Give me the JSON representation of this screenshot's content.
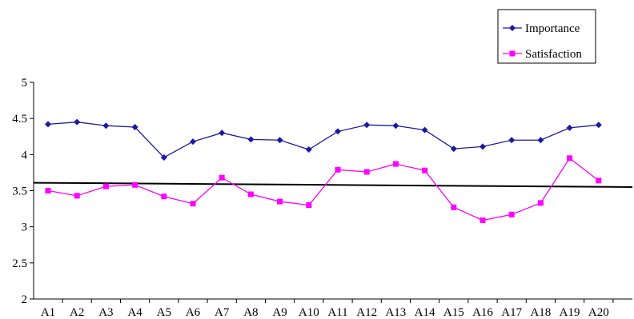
{
  "chart_data": {
    "type": "line",
    "title": "",
    "xlabel": "",
    "ylabel": "",
    "categories": [
      "A1",
      "A2",
      "A3",
      "A4",
      "A5",
      "A6",
      "A7",
      "A8",
      "A9",
      "A10",
      "A11",
      "A12",
      "A13",
      "A14",
      "A15",
      "A16",
      "A17",
      "A18",
      "A19",
      "A20"
    ],
    "ylim": [
      2,
      5
    ],
    "yticks": [
      "2",
      "2.5",
      "3",
      "3.5",
      "4",
      "4.5",
      "5"
    ],
    "grid": false,
    "legend_position": "top-right",
    "series": [
      {
        "name": "Importance",
        "color": "#1a1aa0",
        "marker": "diamond",
        "values": [
          4.42,
          4.45,
          4.4,
          4.38,
          3.96,
          4.18,
          4.3,
          4.21,
          4.2,
          4.07,
          4.32,
          4.41,
          4.4,
          4.34,
          4.08,
          4.11,
          4.2,
          4.2,
          4.37,
          4.41
        ]
      },
      {
        "name": "Satisfaction",
        "color": "#ff00ff",
        "marker": "square",
        "values": [
          3.5,
          3.43,
          3.56,
          3.58,
          3.42,
          3.32,
          3.68,
          3.45,
          3.35,
          3.3,
          3.79,
          3.76,
          3.87,
          3.78,
          3.27,
          3.09,
          3.17,
          3.33,
          3.95,
          3.64
        ]
      }
    ],
    "reference_line": {
      "from": 3.61,
      "to": 3.55,
      "color": "#000000"
    }
  }
}
